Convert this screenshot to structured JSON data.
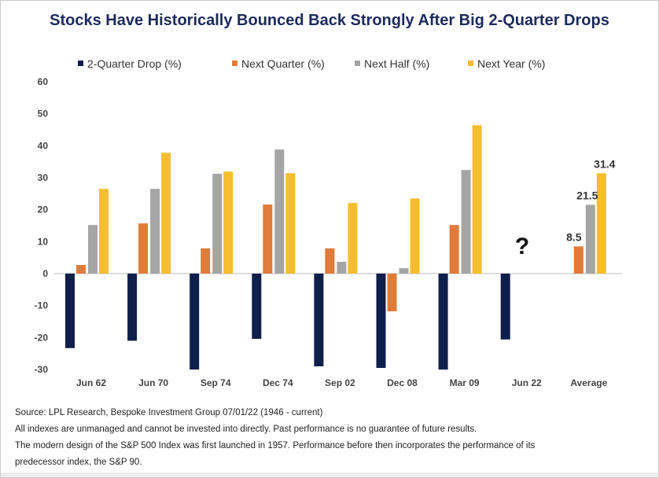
{
  "chart_data": {
    "type": "bar",
    "title": "Stocks Have Historically Bounced Back Strongly After Big 2-Quarter Drops",
    "categories": [
      "Jun 62",
      "Jun 70",
      "Sep 74",
      "Dec 74",
      "Sep 02",
      "Dec 08",
      "Mar 09",
      "Jun 22",
      "Average"
    ],
    "series": [
      {
        "name": "2-Quarter Drop (%)",
        "color": "#0f1f4b",
        "values": [
          -23.3,
          -21,
          -30,
          -20.4,
          -29,
          -29.5,
          -30,
          -20.6,
          null
        ]
      },
      {
        "name": "Next Quarter (%)",
        "color": "#e07b39",
        "values": [
          2.7,
          15.7,
          7.9,
          21.6,
          7.9,
          -11.8,
          15.2,
          null,
          8.5
        ]
      },
      {
        "name": "Next Half (%)",
        "color": "#a5a5a5",
        "values": [
          15.2,
          26.5,
          31.2,
          38.8,
          3.7,
          1.7,
          32.4,
          null,
          21.5
        ]
      },
      {
        "name": "Next Year (%)",
        "color": "#f5be2e",
        "values": [
          26.5,
          37.8,
          31.9,
          31.4,
          22.1,
          23.5,
          46.4,
          null,
          31.4
        ]
      }
    ],
    "data_labels": {
      "Average": [
        "8.5",
        "21.5",
        "31.4"
      ]
    },
    "annotation": "?",
    "ylim": [
      -30,
      60
    ],
    "yticks": [
      60,
      50,
      40,
      30,
      20,
      10,
      0,
      -10,
      -20,
      -30
    ],
    "legend": "top",
    "grid": false
  },
  "footer": [
    "Source: LPL Research, Bespoke Investment Group 07/01/22  (1946 - current)",
    "All indexes are unmanaged and cannot be invested into directly. Past performance is no guarantee of future results.",
    "The modern design of the S&P 500 Index was first launched in 1957. Performance before then incorporates the performance of its",
    "predecessor index, the S&P 90."
  ]
}
